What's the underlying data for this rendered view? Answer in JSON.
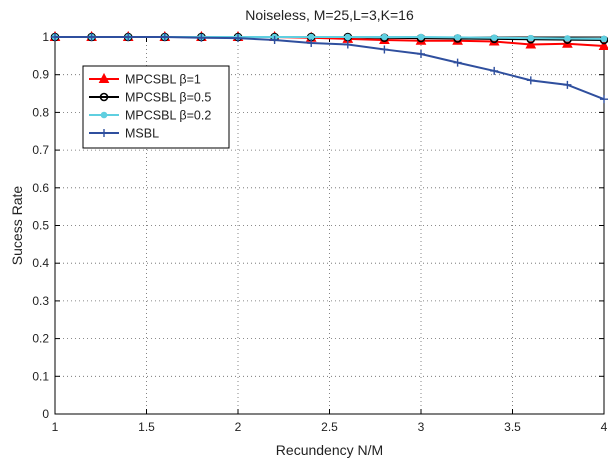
{
  "chart_data": {
    "type": "line",
    "title": "Noiseless, M=25,L=3,K=16",
    "xlabel": "Recundency N/M",
    "ylabel": "Sucess Rate",
    "xlim": [
      1,
      4
    ],
    "ylim": [
      0,
      1
    ],
    "xticks": [
      "1",
      "1.5",
      "2",
      "2.5",
      "3",
      "3.5",
      "4"
    ],
    "yticks": [
      "0",
      "0.1",
      "0.2",
      "0.3",
      "0.4",
      "0.5",
      "0.6",
      "0.7",
      "0.8",
      "0.9",
      "1"
    ],
    "grid": true,
    "legend_position": "top-left",
    "x": [
      1,
      1.2,
      1.4,
      1.6,
      1.8,
      2,
      2.2,
      2.4,
      2.6,
      2.8,
      3,
      3.2,
      3.4,
      3.6,
      3.8,
      4
    ],
    "series": [
      {
        "name": "MPCSBL β=1",
        "color": "#ff0000",
        "marker": "triangle",
        "values": [
          1,
          1,
          1,
          1,
          1,
          1,
          1,
          0.998,
          0.995,
          0.992,
          0.99,
          0.99,
          0.988,
          0.98,
          0.982,
          0.976
        ]
      },
      {
        "name": "MPCSBL β=0.5",
        "color": "#000000",
        "marker": "circle",
        "values": [
          1,
          1,
          1,
          1,
          1,
          1,
          1,
          1,
          1,
          0.998,
          0.997,
          0.996,
          0.995,
          0.994,
          0.993,
          0.992
        ]
      },
      {
        "name": "MPCSBL β=0.2",
        "color": "#5fcfe0",
        "marker": "dot",
        "values": [
          1,
          1,
          1,
          1,
          1,
          1,
          1,
          1,
          1,
          1,
          1,
          0.999,
          0.998,
          0.997,
          0.996,
          0.995
        ]
      },
      {
        "name": "MSBL",
        "color": "#2f4f9e",
        "marker": "plus",
        "values": [
          1,
          1,
          1,
          1,
          0.998,
          0.997,
          0.992,
          0.984,
          0.98,
          0.967,
          0.955,
          0.932,
          0.91,
          0.885,
          0.873,
          0.835
        ]
      }
    ]
  }
}
